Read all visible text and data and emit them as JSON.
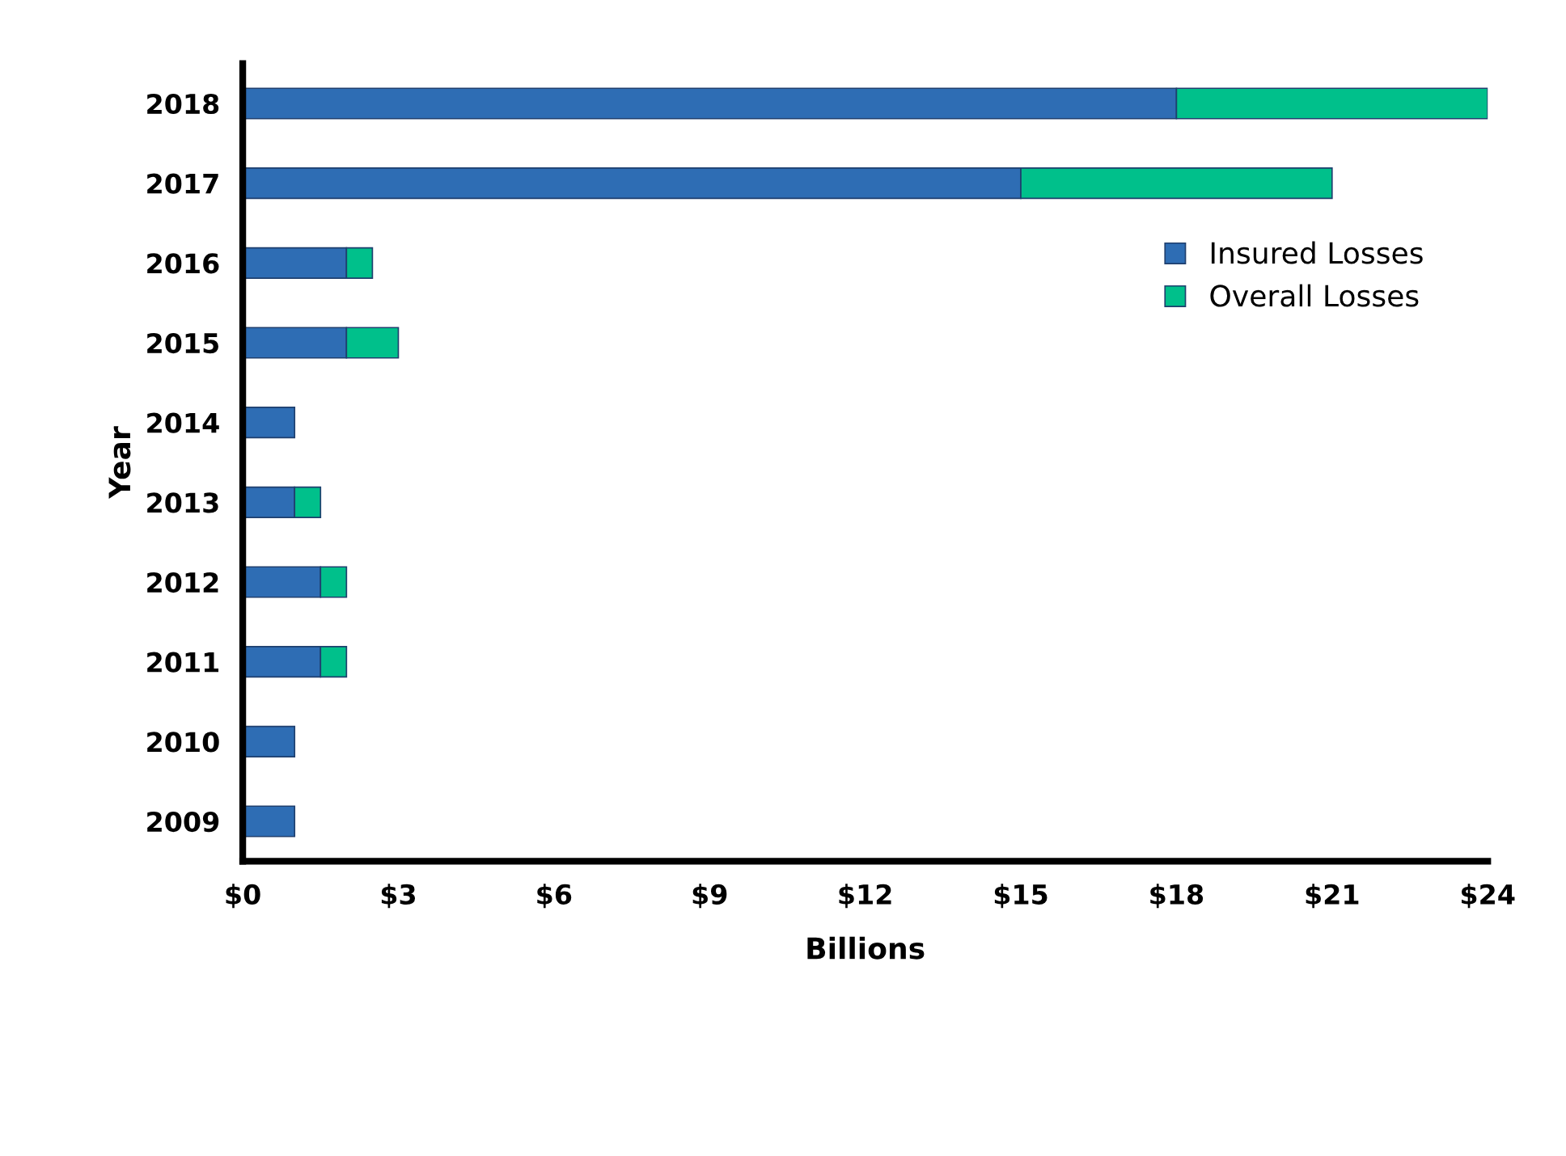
{
  "chart_data": {
    "type": "bar",
    "orientation": "horizontal",
    "stacked": true,
    "xlabel": "Billions",
    "ylabel": "Year",
    "categories": [
      "2018",
      "2017",
      "2016",
      "2015",
      "2014",
      "2013",
      "2012",
      "2011",
      "2010",
      "2009"
    ],
    "series": [
      {
        "name": "Insured Losses",
        "color": "#2e6db4",
        "values": [
          18,
          15,
          2,
          2,
          1,
          1,
          1.5,
          1.5,
          1,
          1
        ]
      },
      {
        "name": "Overall Losses",
        "color": "#00c08b",
        "values": [
          6,
          6,
          0.5,
          1,
          null,
          0.5,
          0.5,
          0.5,
          null,
          null
        ]
      }
    ],
    "xlim": [
      0,
      24
    ],
    "xticks": [
      {
        "value": 0,
        "label": "$0"
      },
      {
        "value": 3,
        "label": "$3"
      },
      {
        "value": 6,
        "label": "$6"
      },
      {
        "value": 9,
        "label": "$9"
      },
      {
        "value": 12,
        "label": "$12"
      },
      {
        "value": 15,
        "label": "$15"
      },
      {
        "value": 18,
        "label": "$18"
      },
      {
        "value": 21,
        "label": "$21"
      },
      {
        "value": 24,
        "label": "$24"
      }
    ],
    "legend": "top right",
    "grid": false
  }
}
